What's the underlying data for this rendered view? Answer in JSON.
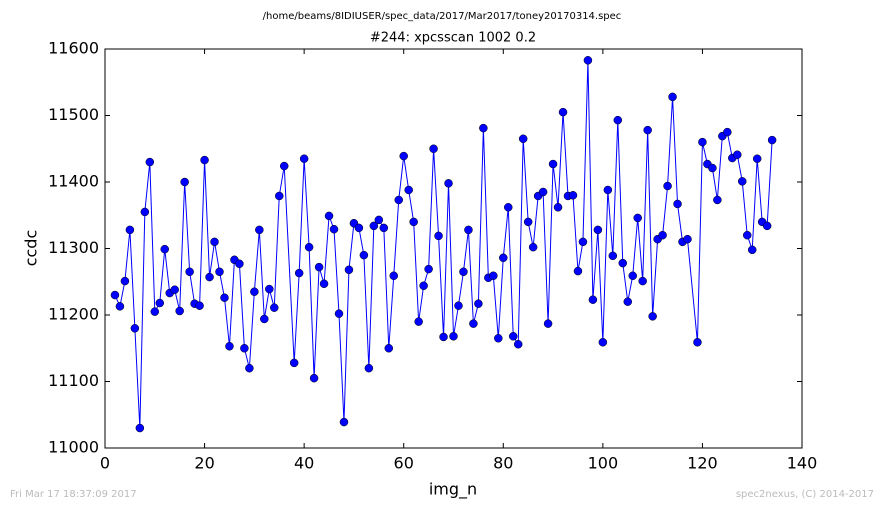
{
  "chart_data": {
    "type": "line",
    "title": "#244: xpcsscan 1002 0.2",
    "subtitle": "/home/beams/8IDIUSER/spec_data/2017/Mar2017/toney20170314.spec",
    "x_label": "img_n",
    "y_label": "ccdc",
    "footer_left": "Fri Mar 17 18:37:09 2017",
    "footer_right": "spec2nexus, (C) 2014-2017",
    "color": "#0000ff",
    "xlim": [
      0,
      140
    ],
    "xticks": [
      0,
      20,
      40,
      60,
      80,
      100,
      120,
      140
    ],
    "ylim": [
      11000,
      11600
    ],
    "yticks": [
      11000,
      11100,
      11200,
      11300,
      11400,
      11500,
      11600
    ],
    "x": [
      2,
      3,
      4,
      5,
      6,
      7,
      8,
      9,
      10,
      11,
      12,
      13,
      14,
      15,
      16,
      17,
      18,
      19,
      20,
      21,
      22,
      23,
      24,
      25,
      26,
      27,
      28,
      29,
      30,
      31,
      32,
      33,
      34,
      35,
      36,
      38,
      39,
      40,
      41,
      42,
      43,
      44,
      45,
      46,
      47,
      48,
      49,
      50,
      51,
      52,
      53,
      54,
      55,
      56,
      57,
      58,
      59,
      60,
      61,
      62,
      63,
      64,
      65,
      66,
      67,
      68,
      69,
      70,
      71,
      72,
      73,
      74,
      75,
      76,
      77,
      78,
      79,
      80,
      81,
      82,
      83,
      84,
      85,
      86,
      87,
      88,
      89,
      90,
      91,
      92,
      93,
      94,
      95,
      96,
      97,
      98,
      99,
      100,
      101,
      102,
      103,
      104,
      105,
      106,
      107,
      108,
      109,
      110,
      111,
      112,
      113,
      114,
      115,
      116,
      117,
      119,
      120,
      121,
      122,
      123,
      124,
      125,
      126,
      127,
      128,
      129,
      130,
      131,
      132,
      133,
      134
    ],
    "values": [
      11230,
      11213,
      11251,
      11328,
      11180,
      11030,
      11355,
      11430,
      11205,
      11218,
      11299,
      11233,
      11238,
      11206,
      11400,
      11265,
      11217,
      11214,
      11433,
      11257,
      11310,
      11265,
      11226,
      11153,
      11283,
      11277,
      11150,
      11120,
      11235,
      11328,
      11194,
      11239,
      11211,
      11379,
      11424,
      11128,
      11263,
      11435,
      11302,
      11105,
      11272,
      11247,
      11349,
      11329,
      11202,
      11039,
      11268,
      11338,
      11331,
      11290,
      11120,
      11334,
      11343,
      11331,
      11150,
      11259,
      11373,
      11439,
      11388,
      11340,
      11190,
      11244,
      11269,
      11450,
      11319,
      11167,
      11398,
      11168,
      11214,
      11265,
      11328,
      11187,
      11217,
      11481,
      11256,
      11259,
      11165,
      11286,
      11362,
      11168,
      11156,
      11465,
      11340,
      11302,
      11379,
      11385,
      11187,
      11427,
      11362,
      11505,
      11379,
      11380,
      11266,
      11310,
      11583,
      11223,
      11328,
      11159,
      11388,
      11289,
      11493,
      11278,
      11220,
      11259,
      11346,
      11251,
      11478,
      11198,
      11314,
      11320,
      11394,
      11528,
      11367,
      11310,
      11314,
      11159,
      11460,
      11427,
      11421,
      11373,
      11469,
      11475,
      11436,
      11441,
      11401,
      11320,
      11298,
      11435,
      11340,
      11334,
      11463
    ]
  }
}
